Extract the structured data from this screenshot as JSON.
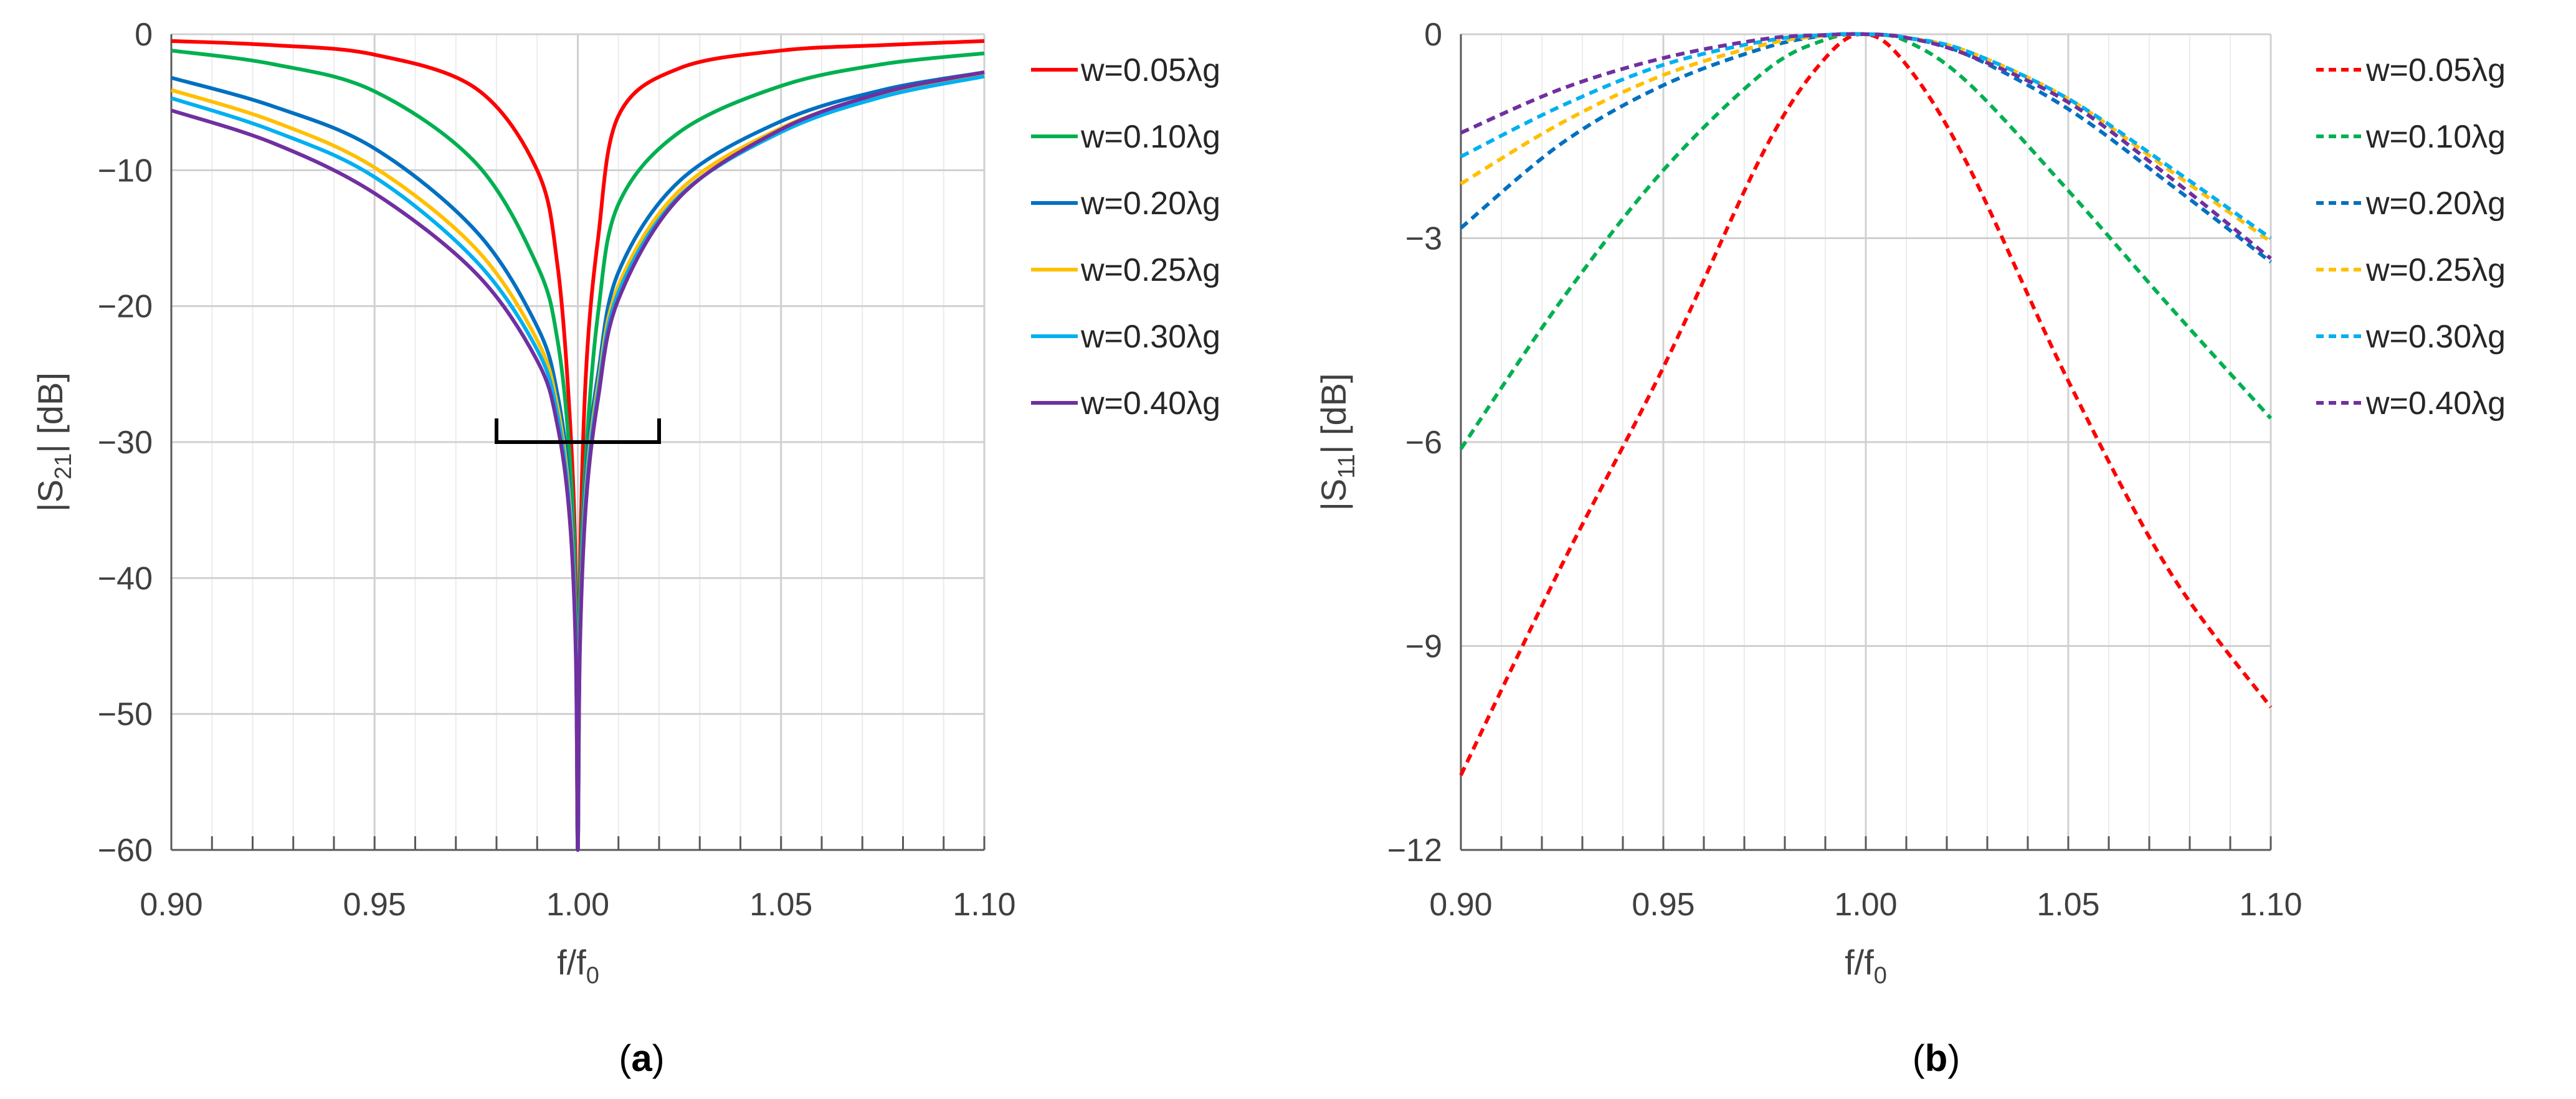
{
  "chart_data": [
    {
      "panel": "a",
      "caption_letter": "a",
      "type": "line",
      "title": "",
      "xlabel": "f/f",
      "xlabel_sub": "0",
      "ylabel_prefix": "|S",
      "ylabel_sub": "21",
      "ylabel_suffix": "| [dB]",
      "xlim": [
        0.9,
        1.1
      ],
      "ylim": [
        -60,
        0
      ],
      "x_ticks": [
        0.9,
        0.95,
        1.0,
        1.05,
        1.1
      ],
      "x_tick_labels": [
        "0.90",
        "0.95",
        "1.00",
        "1.05",
        "1.10"
      ],
      "y_ticks": [
        0,
        -10,
        -20,
        -30,
        -40,
        -50,
        -60
      ],
      "y_tick_labels": [
        "0",
        "−10",
        "−20",
        "−30",
        "−40",
        "−50",
        "−60"
      ],
      "grid": true,
      "line_style": "solid",
      "legend_position": "right",
      "x": [
        0.9,
        0.925,
        0.95,
        0.975,
        0.99,
        0.995,
        0.998,
        0.9995,
        1.0,
        1.0005,
        1.002,
        1.005,
        1.01,
        1.025,
        1.05,
        1.075,
        1.1
      ],
      "series": [
        {
          "name": "w=0.05λg",
          "color": "#ff0000",
          "values": [
            -0.5,
            -0.8,
            -1.5,
            -4,
            -10,
            -17,
            -28,
            -40,
            -60,
            -40,
            -25,
            -15,
            -6,
            -2.5,
            -1.2,
            -0.8,
            -0.5
          ]
        },
        {
          "name": "w=0.10λg",
          "color": "#00b050",
          "values": [
            -1.2,
            -2.2,
            -4.2,
            -9.5,
            -17,
            -22.5,
            -31,
            -42,
            -60,
            -42,
            -31,
            -20.5,
            -12.5,
            -7.2,
            -3.8,
            -2.2,
            -1.4
          ]
        },
        {
          "name": "w=0.20λg",
          "color": "#0070c0",
          "values": [
            -3.2,
            -5.3,
            -8.4,
            -14.5,
            -21.5,
            -26.5,
            -33.5,
            -44,
            -60,
            -44,
            -32.5,
            -25,
            -17.5,
            -10.8,
            -6.4,
            -4.1,
            -2.8
          ]
        },
        {
          "name": "w=0.25λg",
          "color": "#ffc000",
          "values": [
            -4.1,
            -6.4,
            -9.8,
            -15.8,
            -22.5,
            -27.4,
            -34.4,
            -44.6,
            -60,
            -44.6,
            -33.5,
            -25.8,
            -18.5,
            -11.5,
            -6.9,
            -4.4,
            -3.0
          ]
        },
        {
          "name": "w=0.30λg",
          "color": "#00b0f0",
          "values": [
            -4.7,
            -7.1,
            -10.5,
            -16.7,
            -23.2,
            -28.0,
            -35.0,
            -45.0,
            -60,
            -45.0,
            -34.0,
            -26.3,
            -19.0,
            -11.9,
            -7.2,
            -4.6,
            -3.1
          ]
        },
        {
          "name": "w=0.40λg",
          "color": "#7030a0",
          "values": [
            -5.6,
            -8.0,
            -11.7,
            -17.6,
            -24.0,
            -28.8,
            -35.6,
            -45.5,
            -60,
            -45.5,
            -34.6,
            -26.8,
            -19.5,
            -12.0,
            -7.0,
            -4.3,
            -2.8
          ]
        }
      ],
      "annotation": {
        "type": "bracket",
        "x_from": 0.98,
        "x_to": 1.02,
        "y": -30
      }
    },
    {
      "panel": "b",
      "caption_letter": "b",
      "type": "line",
      "title": "",
      "xlabel": "f/f",
      "xlabel_sub": "0",
      "ylabel_prefix": "|S",
      "ylabel_sub": "11",
      "ylabel_suffix": "| [dB]",
      "xlim": [
        0.9,
        1.1
      ],
      "ylim": [
        -12,
        0
      ],
      "x_ticks": [
        0.9,
        0.95,
        1.0,
        1.05,
        1.1
      ],
      "x_tick_labels": [
        "0.90",
        "0.95",
        "1.00",
        "1.05",
        "1.10"
      ],
      "y_ticks": [
        0,
        -3,
        -6,
        -9,
        -12
      ],
      "y_tick_labels": [
        "0",
        "−3",
        "−6",
        "−9",
        "−12"
      ],
      "grid": true,
      "line_style": "dashed",
      "legend_position": "right",
      "x": [
        0.9,
        0.925,
        0.95,
        0.975,
        0.99,
        1.0,
        1.01,
        1.025,
        1.05,
        1.075,
        1.1
      ],
      "series": [
        {
          "name": "w=0.05λg",
          "color": "#ff0000",
          "values": [
            -10.9,
            -7.8,
            -4.9,
            -1.7,
            -0.35,
            0,
            -0.45,
            -1.9,
            -5.1,
            -7.9,
            -9.9
          ]
        },
        {
          "name": "w=0.10λg",
          "color": "#00b050",
          "values": [
            -6.1,
            -3.9,
            -2.0,
            -0.55,
            -0.08,
            0,
            -0.1,
            -0.7,
            -2.3,
            -4.0,
            -5.65
          ]
        },
        {
          "name": "w=0.20λg",
          "color": "#0070c0",
          "values": [
            -2.85,
            -1.6,
            -0.75,
            -0.2,
            -0.02,
            0,
            -0.05,
            -0.3,
            -1.1,
            -2.2,
            -3.35
          ]
        },
        {
          "name": "w=0.25λg",
          "color": "#ffc000",
          "values": [
            -2.2,
            -1.3,
            -0.6,
            -0.15,
            -0.02,
            0,
            -0.05,
            -0.25,
            -0.95,
            -2.0,
            -3.05
          ]
        },
        {
          "name": "w=0.30λg",
          "color": "#00b0f0",
          "values": [
            -1.8,
            -1.05,
            -0.45,
            -0.1,
            -0.01,
            0,
            -0.05,
            -0.25,
            -0.95,
            -1.95,
            -3.0
          ]
        },
        {
          "name": "w=0.40λg",
          "color": "#7030a0",
          "values": [
            -1.45,
            -0.8,
            -0.35,
            -0.07,
            -0.01,
            0,
            -0.05,
            -0.3,
            -1.0,
            -2.1,
            -3.3
          ]
        }
      ]
    }
  ]
}
